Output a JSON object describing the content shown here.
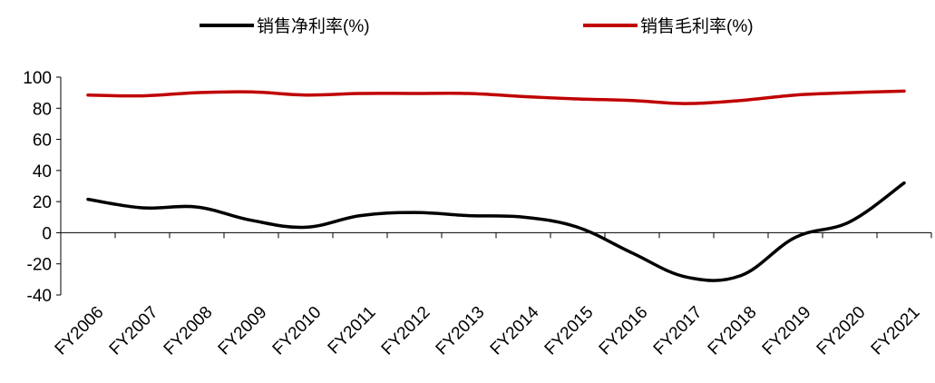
{
  "chart_data": {
    "type": "line",
    "categories": [
      "FY2006",
      "FY2007",
      "FY2008",
      "FY2009",
      "FY2010",
      "FY2011",
      "FY2012",
      "FY2013",
      "FY2014",
      "FY2015",
      "FY2016",
      "FY2017",
      "FY2018",
      "FY2019",
      "FY2020",
      "FY2021"
    ],
    "series": [
      {
        "name": "销售净利率(%)",
        "color": "#000000",
        "values": [
          21.5,
          16,
          16.5,
          8,
          3.5,
          11,
          13,
          11,
          10,
          3.5,
          -13,
          -28.5,
          -27.5,
          -3,
          7,
          32
        ]
      },
      {
        "name": "销售毛利率(%)",
        "color": "#c00000",
        "values": [
          88.5,
          88,
          90,
          90.5,
          88.5,
          89.5,
          89.5,
          89.5,
          87.5,
          86,
          85,
          83,
          85,
          88.5,
          90,
          91
        ]
      }
    ],
    "ylim": [
      -40,
      100
    ],
    "yticks": [
      100,
      80,
      60,
      40,
      20,
      0,
      -20,
      -40
    ],
    "legend_position": "top",
    "grid": false
  }
}
